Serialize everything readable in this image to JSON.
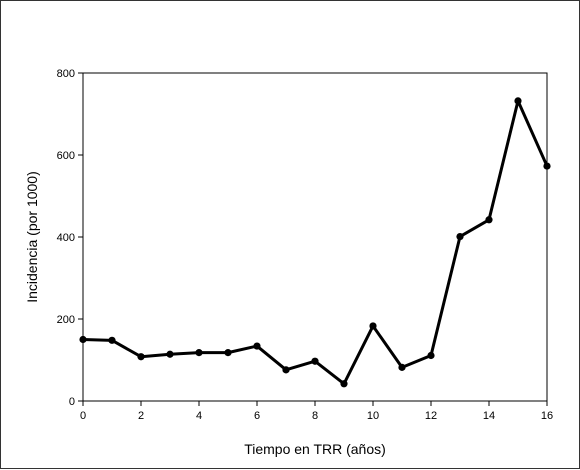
{
  "chart_data": {
    "type": "line",
    "title": "",
    "xlabel": "Tiempo en TRR (años)",
    "ylabel": "Incidencia (por 1000)",
    "xlim": [
      0,
      16
    ],
    "ylim": [
      0,
      800
    ],
    "x_ticks": [
      0,
      2,
      4,
      6,
      8,
      10,
      12,
      14,
      16
    ],
    "y_ticks": [
      0,
      200,
      400,
      600,
      800
    ],
    "grid": false,
    "legend": "none",
    "series": [
      {
        "color": "#000000",
        "x": [
          0,
          1,
          2,
          3,
          4,
          5,
          6,
          7,
          8,
          9,
          10,
          11,
          12,
          13,
          14,
          15,
          16
        ],
        "y": [
          150,
          148,
          108,
          114,
          118,
          118,
          134,
          76,
          97,
          42,
          183,
          82,
          111,
          401,
          442,
          732,
          573
        ]
      }
    ]
  }
}
